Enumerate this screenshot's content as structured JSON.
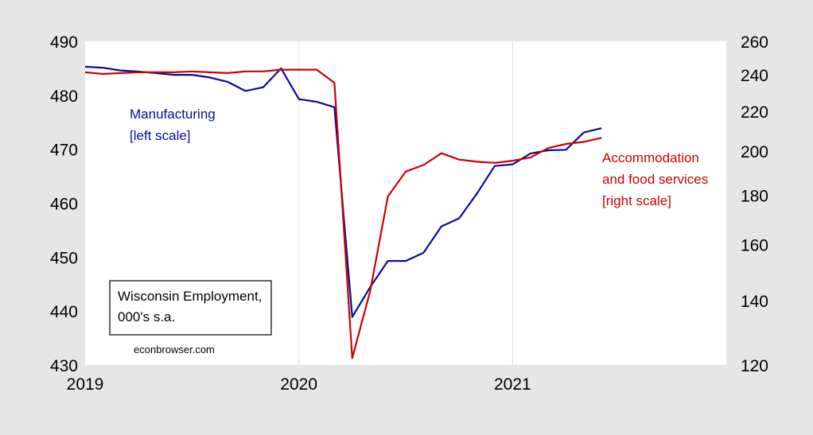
{
  "chart_data": {
    "type": "line",
    "x_ticks": [
      "2019",
      "2020",
      "2021"
    ],
    "left_axis": {
      "ticks": [
        430,
        440,
        450,
        460,
        470,
        480,
        490
      ],
      "ylim": [
        430,
        490
      ]
    },
    "right_axis": {
      "ticks": [
        120,
        140,
        160,
        180,
        200,
        220,
        240,
        260
      ],
      "ylim": [
        120,
        260
      ],
      "scale": "log"
    },
    "x": [
      "2019-01",
      "2019-02",
      "2019-03",
      "2019-04",
      "2019-05",
      "2019-06",
      "2019-07",
      "2019-08",
      "2019-09",
      "2019-10",
      "2019-11",
      "2019-12",
      "2020-01",
      "2020-02",
      "2020-03",
      "2020-04",
      "2020-05",
      "2020-06",
      "2020-07",
      "2020-08",
      "2020-09",
      "2020-10",
      "2020-11",
      "2020-12",
      "2021-01",
      "2021-02",
      "2021-03",
      "2021-04",
      "2021-05",
      "2021-06"
    ],
    "xlim": [
      "2019-01",
      "2021-12"
    ],
    "series": [
      {
        "name": "Manufacturing",
        "axis": "left",
        "color": "#0a0a9a",
        "values": [
          485.3,
          485.1,
          484.6,
          484.4,
          484.1,
          483.8,
          483.8,
          483.3,
          482.5,
          480.8,
          481.5,
          485.0,
          479.3,
          478.8,
          477.8,
          438.9,
          444.4,
          449.3,
          449.3,
          450.8,
          455.7,
          457.2,
          461.8,
          466.9,
          467.2,
          469.2,
          469.8,
          469.9,
          473.1,
          473.9
        ]
      },
      {
        "name": "Accommodation and food services",
        "axis": "right",
        "color": "#cc0000",
        "values": [
          241.5,
          240.5,
          241.0,
          241.5,
          241.5,
          241.5,
          242.0,
          241.5,
          241.0,
          242.0,
          242.0,
          243.0,
          243.0,
          243.0,
          235.5,
          122.0,
          143.0,
          179.5,
          190.5,
          193.5,
          199.0,
          196.0,
          195.0,
          194.5,
          195.5,
          197.0,
          201.5,
          203.5,
          204.5,
          206.5
        ]
      }
    ]
  },
  "labels": {
    "manufacturing_line1": "Manufacturing",
    "manufacturing_line2": "[left scale]",
    "accommodation_line1": "Accommodation",
    "accommodation_line2": "and food services",
    "accommodation_line3": "[right scale]",
    "box_line1": "Wisconsin Employment,",
    "box_line2": "000's s.a.",
    "credit": "econbrowser.com"
  }
}
